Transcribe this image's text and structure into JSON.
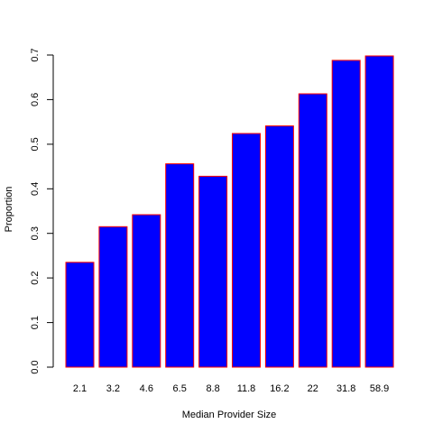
{
  "chart_data": {
    "type": "bar",
    "categories": [
      "2.1",
      "3.2",
      "4.6",
      "6.5",
      "8.8",
      "11.8",
      "16.2",
      "22",
      "31.8",
      "58.9"
    ],
    "values": [
      0.235,
      0.315,
      0.342,
      0.456,
      0.428,
      0.524,
      0.541,
      0.613,
      0.688,
      0.698
    ],
    "xlabel": "Median Provider Size",
    "ylabel": "Proportion",
    "ylim": [
      0,
      0.7
    ],
    "yticks": [
      "0.0",
      "0.1",
      "0.2",
      "0.3",
      "0.4",
      "0.5",
      "0.6",
      "0.7"
    ],
    "grid": false,
    "bar_fill_color": "#0000ff",
    "bar_border_color": "#ff0000"
  }
}
